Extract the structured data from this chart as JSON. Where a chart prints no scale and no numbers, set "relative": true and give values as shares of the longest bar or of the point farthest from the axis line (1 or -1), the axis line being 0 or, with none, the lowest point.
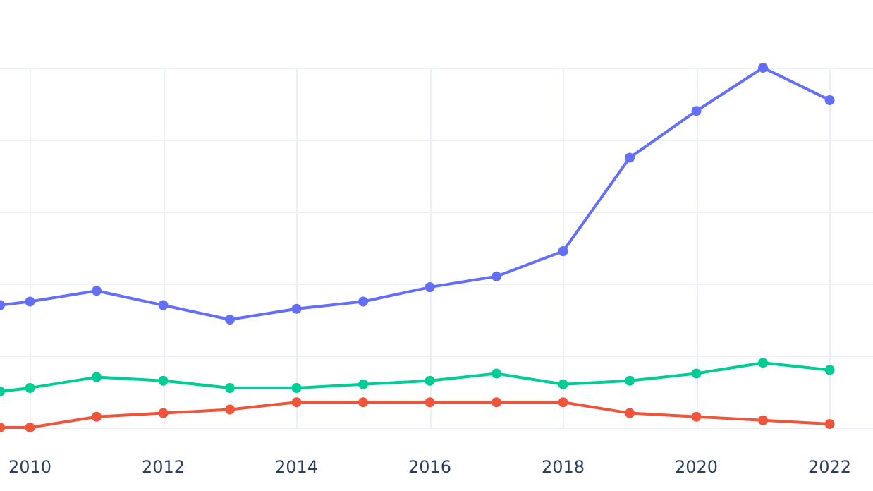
{
  "chart_data": {
    "type": "line",
    "relative": true,
    "xlim": [
      2009.55,
      2022.65
    ],
    "xticks": [
      2010,
      2012,
      2014,
      2016,
      2018,
      2020,
      2022
    ],
    "x": [
      2009.55,
      2010,
      2011,
      2012,
      2013,
      2014,
      2015,
      2016,
      2017,
      2018,
      2019,
      2020,
      2021,
      2022
    ],
    "series": [
      {
        "color": "#636efa",
        "values": [
          0.34,
          0.35,
          0.38,
          0.34,
          0.3,
          0.33,
          0.35,
          0.39,
          0.42,
          0.49,
          0.75,
          0.88,
          1.0,
          0.91
        ]
      },
      {
        "color": "#00cc96",
        "values": [
          0.1,
          0.11,
          0.14,
          0.13,
          0.11,
          0.11,
          0.12,
          0.13,
          0.15,
          0.12,
          0.13,
          0.15,
          0.18,
          0.16
        ]
      },
      {
        "color": "#ef553b",
        "values": [
          0.0,
          0.0,
          0.03,
          0.04,
          0.05,
          0.07,
          0.07,
          0.07,
          0.07,
          0.07,
          0.04,
          0.03,
          0.02,
          0.01
        ]
      }
    ],
    "grid": true,
    "tick_labels": "x",
    "marker": "circle",
    "line_style": "solid"
  }
}
